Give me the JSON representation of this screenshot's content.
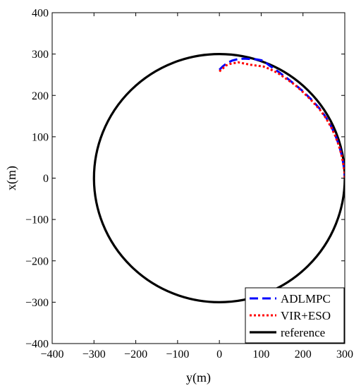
{
  "chart_data": {
    "type": "line",
    "xlabel": "y(m)",
    "ylabel": "x(m)",
    "xlim": [
      -400,
      300
    ],
    "ylim": [
      -400,
      400
    ],
    "xticks": [
      -400,
      -300,
      -200,
      -100,
      0,
      100,
      200,
      300
    ],
    "yticks": [
      -400,
      -300,
      -200,
      -100,
      0,
      100,
      200,
      300,
      400
    ],
    "grid": false,
    "legend_position": "bottom-right",
    "series": [
      {
        "name": "ADLMPC",
        "color": "#0000ff",
        "style": "dashed",
        "x": [
          0,
          8,
          18,
          30,
          45,
          60,
          75,
          90,
          105,
          120,
          140,
          160,
          180,
          200,
          220,
          240,
          255,
          268,
          278,
          286,
          292,
          296,
          299,
          300
        ],
        "y": [
          262,
          270,
          278,
          284,
          288,
          289,
          288,
          287,
          284,
          272,
          258,
          243,
          227,
          210,
          190,
          168,
          147,
          124,
          102,
          80,
          58,
          38,
          18,
          0
        ]
      },
      {
        "name": "VIR+ESO",
        "color": "#ff0000",
        "style": "dotted",
        "x": [
          0,
          8,
          15,
          25,
          35,
          45,
          60,
          75,
          90,
          105,
          120,
          140,
          160,
          180,
          200,
          220,
          240,
          255,
          268,
          278,
          286,
          292,
          296,
          299,
          300
        ],
        "y": [
          258,
          265,
          272,
          276,
          278,
          280,
          277,
          274,
          272,
          270,
          264,
          254,
          240,
          226,
          208,
          188,
          166,
          145,
          122,
          100,
          78,
          56,
          36,
          16,
          0
        ]
      },
      {
        "name": "reference",
        "color": "#000000",
        "style": "solid",
        "shape": "circle",
        "center": [
          0,
          0
        ],
        "radius": 300
      }
    ]
  }
}
